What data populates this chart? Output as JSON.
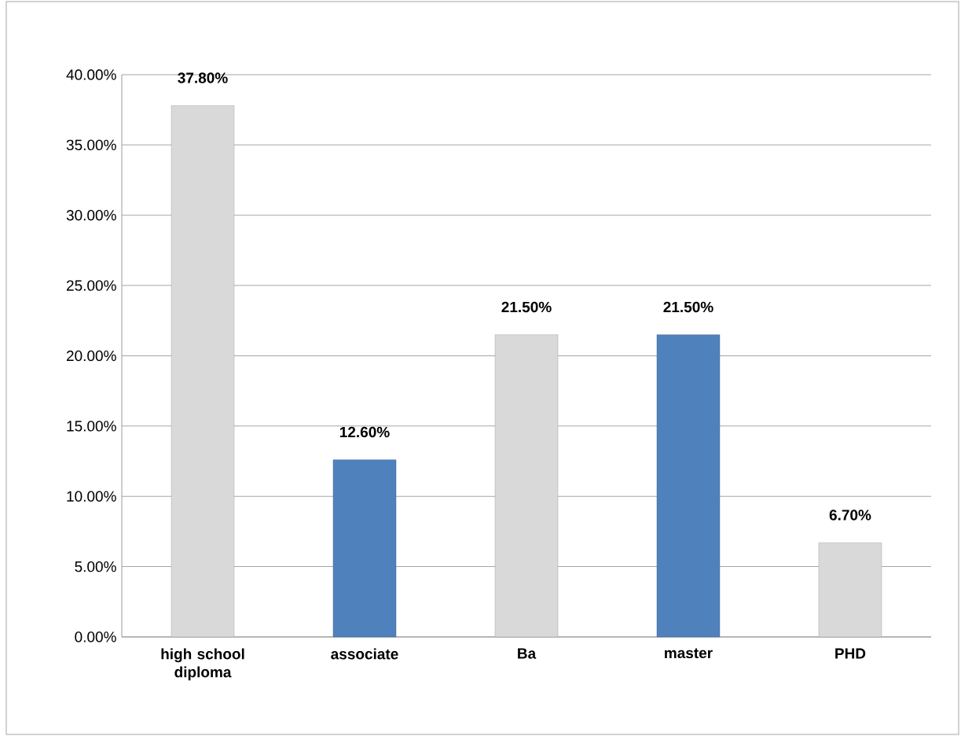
{
  "chart_data": {
    "type": "bar",
    "categories": [
      "high school diploma",
      "associate",
      "Ba",
      "master",
      "PHD"
    ],
    "values": [
      37.8,
      12.6,
      21.5,
      21.5,
      6.7
    ],
    "value_labels": [
      "37.80%",
      "12.60%",
      "21.50%",
      "21.50%",
      "6.70%"
    ],
    "colors": [
      "#d9d9d9",
      "#4f81bd",
      "#d9d9d9",
      "#4f81bd",
      "#d9d9d9"
    ],
    "ylim": [
      0,
      40
    ],
    "yticks": [
      {
        "value": 0,
        "label": "0.00%"
      },
      {
        "value": 5,
        "label": "5.00%"
      },
      {
        "value": 10,
        "label": "10.00%"
      },
      {
        "value": 15,
        "label": "15.00%"
      },
      {
        "value": 20,
        "label": "20.00%"
      },
      {
        "value": 25,
        "label": "25.00%"
      },
      {
        "value": 30,
        "label": "30.00%"
      },
      {
        "value": 35,
        "label": "35.00%"
      },
      {
        "value": 40,
        "label": "40.00%"
      }
    ],
    "grid": "y"
  }
}
